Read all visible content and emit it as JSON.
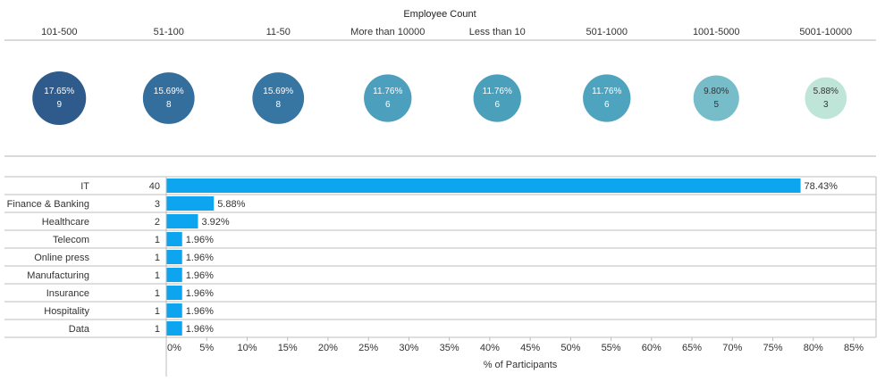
{
  "chart_data": [
    {
      "type": "bubble-row",
      "title": "Employee Count",
      "categories": [
        "101-500",
        "51-100",
        "11-50",
        "More than 10000",
        "Less than 10",
        "501-1000",
        "1001-5000",
        "5001-10000"
      ],
      "percent_labels": [
        "17.65%",
        "15.69%",
        "15.69%",
        "11.76%",
        "11.76%",
        "11.76%",
        "9.80%",
        "5.88%"
      ],
      "counts": [
        9,
        8,
        8,
        6,
        6,
        6,
        5,
        3
      ],
      "colors": [
        "#2e5b8c",
        "#336e9d",
        "#3775a2",
        "#4c9fbd",
        "#4a9fbb",
        "#4ea4bf",
        "#76bdc9",
        "#bfe5d9"
      ]
    },
    {
      "type": "bar",
      "orientation": "horizontal",
      "categories": [
        "IT",
        "Finance & Banking",
        "Healthcare",
        "Telecom",
        "Online press",
        "Manufacturing",
        "Insurance",
        "Hospitality",
        "Data"
      ],
      "counts": [
        40,
        3,
        2,
        1,
        1,
        1,
        1,
        1,
        1
      ],
      "values": [
        78.43,
        5.88,
        3.92,
        1.96,
        1.96,
        1.96,
        1.96,
        1.96,
        1.96
      ],
      "value_labels": [
        "78.43%",
        "5.88%",
        "3.92%",
        "1.96%",
        "1.96%",
        "1.96%",
        "1.96%",
        "1.96%",
        "1.96%"
      ],
      "xlabel": "% of Participants",
      "xlim": [
        0,
        85
      ],
      "xticks": [
        "0%",
        "5%",
        "10%",
        "15%",
        "20%",
        "25%",
        "30%",
        "35%",
        "40%",
        "45%",
        "50%",
        "55%",
        "60%",
        "65%",
        "70%",
        "75%",
        "80%",
        "85%"
      ],
      "bar_color": "#0ea5f0"
    }
  ]
}
